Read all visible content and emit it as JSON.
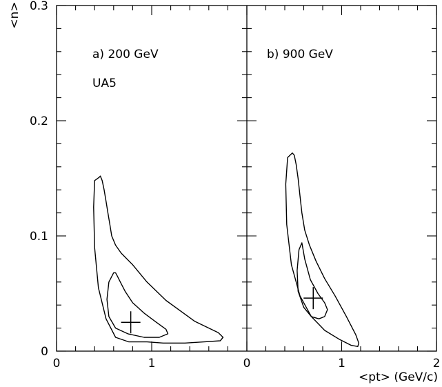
{
  "chart_data": [
    {
      "type": "line",
      "title": "a) 200 GeV",
      "subtitle": "UA5",
      "ylabel": "<n>",
      "xlim": [
        0,
        2
      ],
      "ylim": [
        0,
        0.3
      ],
      "x_ticks": [
        "0",
        "1"
      ],
      "y_ticks": [
        "0",
        "0.1",
        "0.2",
        "0.3"
      ],
      "best_fit": {
        "x": 0.78,
        "y": 0.025
      },
      "series": [
        {
          "x": [
            0.45,
            0.4,
            0.39,
            0.4,
            0.44,
            0.52,
            0.62,
            0.76,
            0.95,
            1.12,
            1.35,
            1.55,
            1.72,
            1.75,
            1.7,
            1.45,
            1.15,
            0.95,
            0.8,
            0.68,
            0.62,
            0.58,
            0.56,
            0.54,
            0.52,
            0.5,
            0.48,
            0.46,
            0.45
          ],
          "y": [
            0.151,
            0.148,
            0.125,
            0.09,
            0.055,
            0.028,
            0.012,
            0.008,
            0.008,
            0.007,
            0.007,
            0.008,
            0.009,
            0.012,
            0.016,
            0.026,
            0.044,
            0.06,
            0.075,
            0.085,
            0.092,
            0.1,
            0.11,
            0.12,
            0.13,
            0.14,
            0.148,
            0.152,
            0.151
          ]
        },
        {
          "x": [
            0.6,
            0.55,
            0.53,
            0.55,
            0.62,
            0.75,
            0.92,
            1.08,
            1.17,
            1.15,
            1.05,
            0.92,
            0.8,
            0.72,
            0.67,
            0.64,
            0.62,
            0.6
          ],
          "y": [
            0.068,
            0.06,
            0.045,
            0.03,
            0.02,
            0.015,
            0.012,
            0.012,
            0.015,
            0.019,
            0.025,
            0.033,
            0.042,
            0.052,
            0.06,
            0.065,
            0.068,
            0.068
          ]
        }
      ]
    },
    {
      "type": "line",
      "title": "b) 900 GeV",
      "xlabel": "<pt> (GeV/c)",
      "xlim": [
        0,
        2
      ],
      "ylim": [
        0,
        0.3
      ],
      "x_ticks": [
        "0",
        "1",
        "2"
      ],
      "best_fit": {
        "x": 0.7,
        "y": 0.046
      },
      "series": [
        {
          "x": [
            0.48,
            0.43,
            0.41,
            0.42,
            0.47,
            0.56,
            0.68,
            0.82,
            0.98,
            1.1,
            1.17,
            1.18,
            1.15,
            1.05,
            0.93,
            0.82,
            0.73,
            0.66,
            0.61,
            0.58,
            0.56,
            0.54,
            0.52,
            0.5,
            0.48
          ],
          "y": [
            0.172,
            0.168,
            0.145,
            0.11,
            0.075,
            0.048,
            0.03,
            0.018,
            0.01,
            0.005,
            0.004,
            0.007,
            0.014,
            0.03,
            0.048,
            0.063,
            0.078,
            0.092,
            0.105,
            0.12,
            0.135,
            0.15,
            0.162,
            0.17,
            0.172
          ]
        },
        {
          "x": [
            0.58,
            0.55,
            0.53,
            0.54,
            0.6,
            0.68,
            0.76,
            0.82,
            0.85,
            0.82,
            0.75,
            0.67,
            0.61,
            0.58
          ],
          "y": [
            0.094,
            0.088,
            0.07,
            0.052,
            0.038,
            0.03,
            0.028,
            0.03,
            0.036,
            0.042,
            0.05,
            0.062,
            0.08,
            0.094
          ]
        }
      ]
    }
  ]
}
